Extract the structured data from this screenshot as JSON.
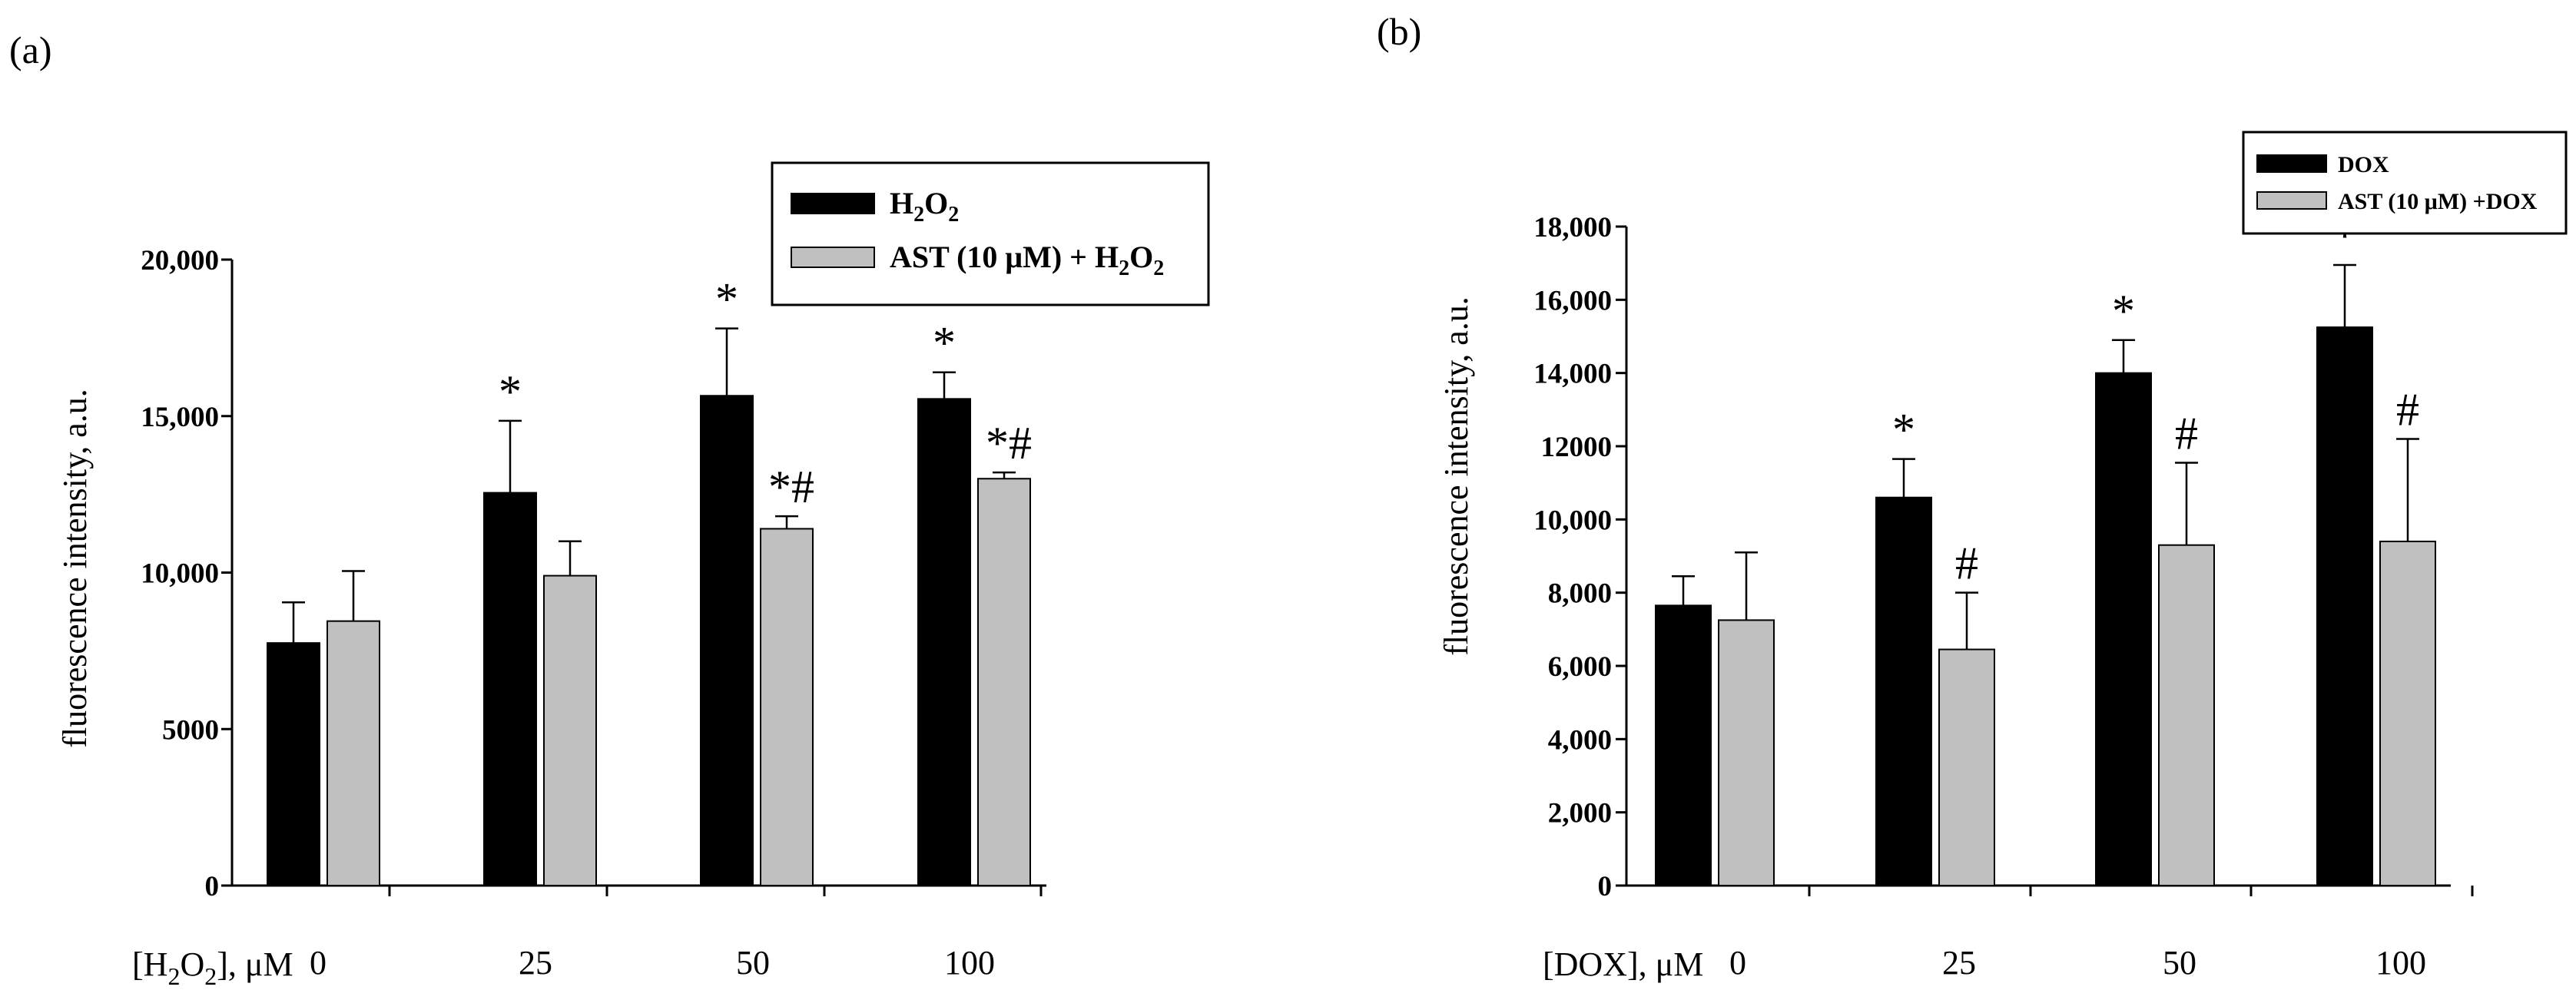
{
  "colors": {
    "series1": "#000000",
    "series2": "#c0c0c0",
    "axis": "#000000"
  },
  "chart_data": [
    {
      "panel_label": "(a)",
      "type": "bar",
      "ylabel": "fluorescence intensity, a.u.",
      "xlabel_prefix": "[H",
      "xlabel_sub": "2",
      "xlabel_mid": "O",
      "xlabel_sub2": "2",
      "xlabel_suffix": "], μM",
      "categories": [
        "0",
        "25",
        "50",
        "100"
      ],
      "ylim": [
        0,
        20000
      ],
      "yticks": [
        "0",
        "5000",
        "10,000",
        "15,000",
        "20,000"
      ],
      "legend_position": "top-right",
      "series": [
        {
          "name": "H2O2",
          "legend_main": "H",
          "legend_sub1": "2",
          "legend_mid": "O",
          "legend_sub2": "2",
          "legend_tail": "",
          "values": [
            7750,
            12550,
            15650,
            15550
          ],
          "errors": [
            1300,
            2300,
            2150,
            850
          ],
          "annotations": [
            "",
            "*",
            "*",
            "*"
          ]
        },
        {
          "name": "AST (10 μM) + H2O2",
          "legend_main": "AST (10 μM) + H",
          "legend_sub1": "2",
          "legend_mid": "O",
          "legend_sub2": "2",
          "legend_tail": "",
          "values": [
            8450,
            9900,
            11400,
            13000
          ],
          "errors": [
            1600,
            1100,
            400,
            200
          ],
          "annotations": [
            "",
            "",
            "*#",
            "*#"
          ]
        }
      ]
    },
    {
      "panel_label": "(b)",
      "type": "bar",
      "ylabel": "fluorescence intensity, a.u.",
      "xlabel": "[DOX], μM",
      "categories": [
        "0",
        "25",
        "50",
        "100"
      ],
      "ylim": [
        0,
        18000
      ],
      "yticks": [
        "0",
        "2,000",
        "4,000",
        "6,000",
        "8,000",
        "10,000",
        "12000",
        "14,000",
        "16,000",
        "18,000"
      ],
      "legend_position": "top-right",
      "series": [
        {
          "name": "DOX",
          "values": [
            7650,
            10600,
            14000,
            15250
          ],
          "errors": [
            800,
            1050,
            900,
            1700
          ],
          "annotations": [
            "",
            "*",
            "*",
            "*"
          ]
        },
        {
          "name": "AST (10 μM) +DOX",
          "values": [
            7250,
            6450,
            9300,
            9400
          ],
          "errors": [
            1850,
            1550,
            2250,
            2800
          ],
          "annotations": [
            "",
            "#",
            "#",
            "#"
          ]
        }
      ]
    }
  ]
}
